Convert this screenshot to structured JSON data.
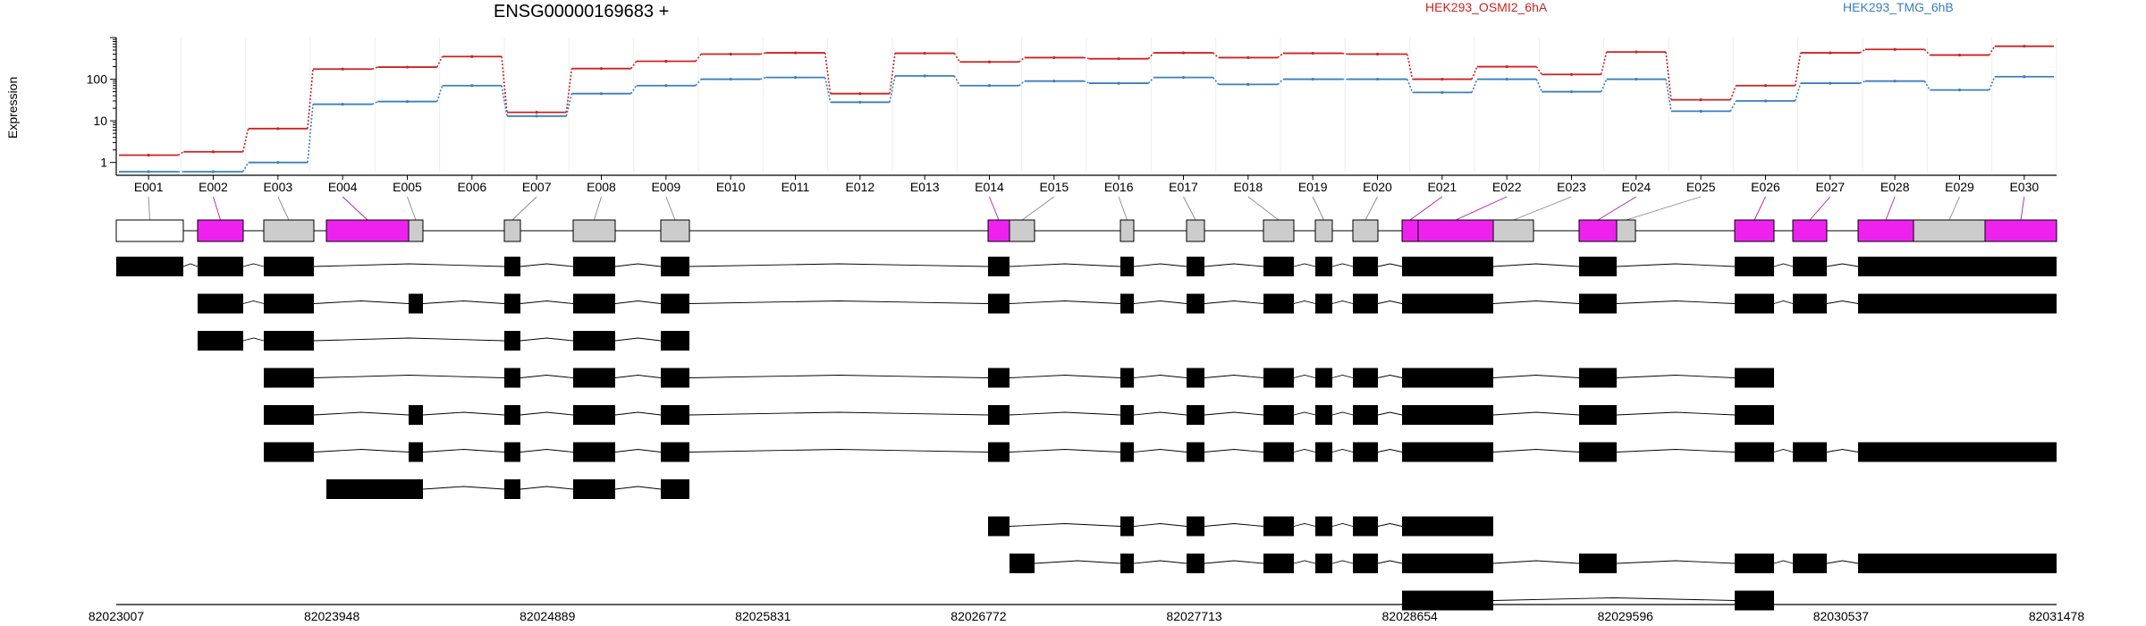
{
  "gene": {
    "title": "ENSG00000169683 +"
  },
  "legend": {
    "red": {
      "label": "HEK293_OSMI2_6hA",
      "color": "#cc2222"
    },
    "blue": {
      "label": "HEK293_TMG_6hB",
      "color": "#3a7fbf"
    }
  },
  "chart_data": {
    "type": "line",
    "title": "ENSG00000169683 +",
    "ylabel": "Expression",
    "yscale": "log",
    "ylim": [
      0.6,
      1000
    ],
    "yticks": [
      1,
      10,
      100
    ],
    "ytick_labels": [
      "1",
      "10",
      "100"
    ],
    "grid": true,
    "legend_position": "top",
    "categories": [
      "E001",
      "E002",
      "E003",
      "E004",
      "E005",
      "E006",
      "E007",
      "E008",
      "E009",
      "E010",
      "E011",
      "E012",
      "E013",
      "E014",
      "E015",
      "E016",
      "E017",
      "E018",
      "E019",
      "E020",
      "E021",
      "E022",
      "E023",
      "E024",
      "E025",
      "E026",
      "E027",
      "E028",
      "E029",
      "E030"
    ],
    "series": [
      {
        "name": "HEK293_OSMI2_6hA",
        "color": "#cc2222",
        "values": [
          1.5,
          1.8,
          6.5,
          175,
          195,
          350,
          16,
          180,
          270,
          400,
          430,
          45,
          420,
          260,
          330,
          310,
          430,
          330,
          420,
          400,
          100,
          200,
          130,
          450,
          32,
          70,
          430,
          520,
          380,
          620
        ]
      },
      {
        "name": "HEK293_TMG_6hB",
        "color": "#3a7fbf",
        "values": [
          0.6,
          0.6,
          1.0,
          25,
          29,
          70,
          13,
          45,
          70,
          100,
          110,
          28,
          120,
          70,
          90,
          80,
          110,
          75,
          100,
          100,
          48,
          100,
          50,
          100,
          17,
          30,
          80,
          90,
          55,
          115
        ]
      }
    ],
    "genomic_axis": {
      "ticks": [
        "82023007",
        "82023948",
        "82024889",
        "82025831",
        "82026772",
        "82027713",
        "82028654",
        "82029596",
        "82030537",
        "82031478"
      ]
    },
    "gene_model": {
      "exon_colors": {
        "highlighted": "#ee22ee",
        "other": "#cccccc",
        "first": "#ffffff"
      },
      "highlighted_exons": [
        "E002",
        "E004",
        "E014",
        "E021",
        "E022",
        "E024",
        "E026",
        "E027",
        "E028",
        "E030"
      ]
    },
    "transcripts": [
      {
        "exons": [
          "E001",
          "E002",
          "E003",
          "E007",
          "E008",
          "E009",
          "E014",
          "E016",
          "E017",
          "E018",
          "E019",
          "E020",
          "E021",
          "E022",
          "E024",
          "E026",
          "E027",
          "E028",
          "E029",
          "E030"
        ]
      },
      {
        "exons": [
          "E002",
          "E003",
          "E005",
          "E007",
          "E008",
          "E009",
          "E014",
          "E016",
          "E017",
          "E018",
          "E019",
          "E020",
          "E021",
          "E022",
          "E024",
          "E026",
          "E027",
          "E028",
          "E029",
          "E030"
        ]
      },
      {
        "exons": [
          "E002",
          "E003",
          "E007",
          "E008",
          "E009"
        ]
      },
      {
        "exons": [
          "E003",
          "E007",
          "E008",
          "E009",
          "E014",
          "E016",
          "E017",
          "E018",
          "E019",
          "E020",
          "E021",
          "E022",
          "E024",
          "E026"
        ]
      },
      {
        "exons": [
          "E003",
          "E005",
          "E007",
          "E008",
          "E009",
          "E014",
          "E016",
          "E017",
          "E018",
          "E019",
          "E020",
          "E021",
          "E022",
          "E024",
          "E026"
        ]
      },
      {
        "exons": [
          "E003",
          "E005",
          "E007",
          "E008",
          "E009",
          "E014",
          "E016",
          "E017",
          "E018",
          "E019",
          "E020",
          "E021",
          "E022",
          "E024",
          "E026",
          "E027",
          "E028",
          "E029",
          "E030"
        ]
      },
      {
        "exons": [
          "E004",
          "E005",
          "E007",
          "E008",
          "E009"
        ]
      },
      {
        "exons": [
          "E014",
          "E016",
          "E017",
          "E018",
          "E019",
          "E020",
          "E021",
          "E022"
        ]
      },
      {
        "exons": [
          "E015",
          "E016",
          "E017",
          "E018",
          "E019",
          "E020",
          "E021",
          "E022",
          "E024",
          "E026",
          "E027",
          "E028",
          "E029",
          "E030"
        ]
      },
      {
        "exons": [
          "E021",
          "E022",
          "E026"
        ]
      }
    ]
  }
}
